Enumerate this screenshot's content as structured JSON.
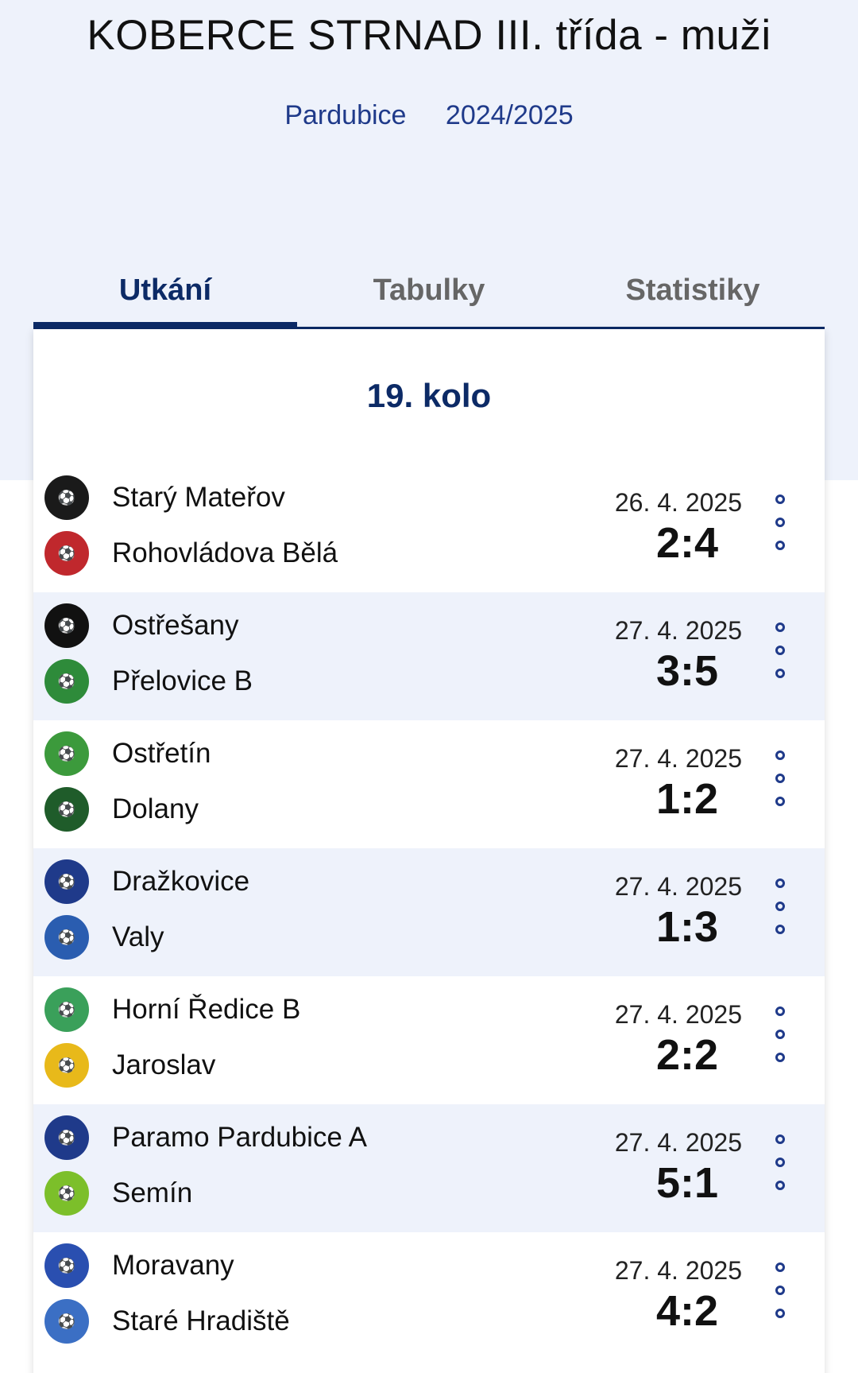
{
  "header": {
    "title": "KOBERCE STRNAD III. třída - muži",
    "region": "Pardubice",
    "season": "2024/2025"
  },
  "tabs": [
    {
      "label": "Utkání",
      "active": true
    },
    {
      "label": "Tabulky",
      "active": false
    },
    {
      "label": "Statistiky",
      "active": false
    }
  ],
  "round": {
    "label": "19. kolo"
  },
  "matches": [
    {
      "home": "Starý Mateřov",
      "away": "Rohovládova Bělá",
      "date": "26. 4. 2025",
      "score": "2:4",
      "home_logo_color": "#1a1a1a",
      "away_logo_color": "#c0282d"
    },
    {
      "home": "Ostřešany",
      "away": "Přelovice B",
      "date": "27. 4. 2025",
      "score": "3:5",
      "home_logo_color": "#111111",
      "away_logo_color": "#2e8b3a"
    },
    {
      "home": "Ostřetín",
      "away": "Dolany",
      "date": "27. 4. 2025",
      "score": "1:2",
      "home_logo_color": "#3c9a3c",
      "away_logo_color": "#1f5c2a"
    },
    {
      "home": "Dražkovice",
      "away": "Valy",
      "date": "27. 4. 2025",
      "score": "1:3",
      "home_logo_color": "#1f3a8a",
      "away_logo_color": "#2a5db0"
    },
    {
      "home": "Horní Ředice B",
      "away": "Jaroslav",
      "date": "27. 4. 2025",
      "score": "2:2",
      "home_logo_color": "#3aa05a",
      "away_logo_color": "#e8b91a"
    },
    {
      "home": "Paramo Pardubice A",
      "away": "Semín",
      "date": "27. 4. 2025",
      "score": "5:1",
      "home_logo_color": "#1f3a8a",
      "away_logo_color": "#7cbf2a"
    },
    {
      "home": "Moravany",
      "away": "Staré Hradiště",
      "date": "27. 4. 2025",
      "score": "4:2",
      "home_logo_color": "#2a4fb0",
      "away_logo_color": "#3b6fc4"
    }
  ]
}
